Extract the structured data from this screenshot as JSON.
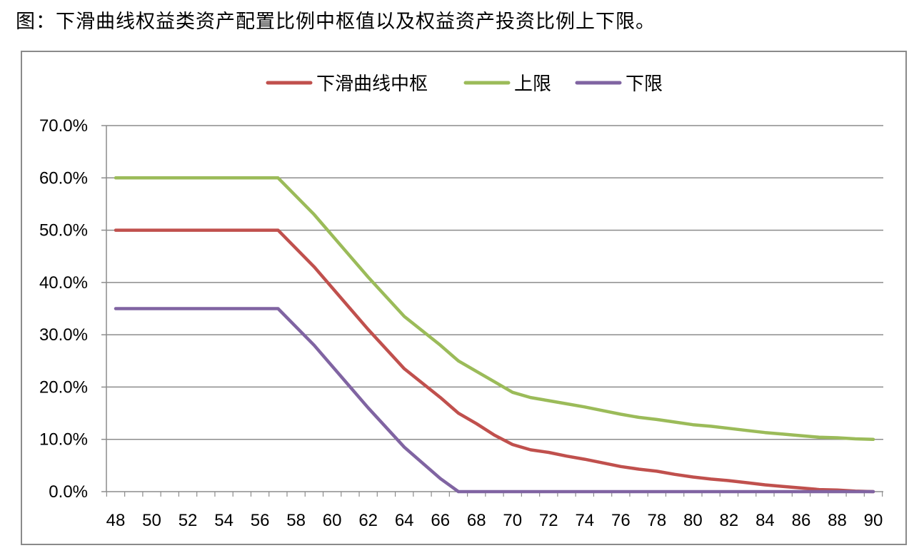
{
  "caption": "图：下滑曲线权益类资产配置比例中枢值以及权益资产投资比例上下限。",
  "chart_data": {
    "type": "line",
    "title": "",
    "xlabel": "",
    "ylabel": "",
    "ylim": [
      0,
      70
    ],
    "xlim": [
      48,
      90
    ],
    "y_ticks": [
      "0.0%",
      "10.0%",
      "20.0%",
      "30.0%",
      "40.0%",
      "50.0%",
      "60.0%",
      "70.0%"
    ],
    "x_ticks": [
      "48",
      "50",
      "52",
      "54",
      "56",
      "58",
      "60",
      "62",
      "64",
      "66",
      "68",
      "70",
      "72",
      "74",
      "76",
      "78",
      "80",
      "82",
      "84",
      "86",
      "88",
      "90"
    ],
    "grid": true,
    "legend_position": "top",
    "series": [
      {
        "name": "下滑曲线中枢",
        "color": "#c0504d",
        "x": [
          48,
          57,
          59,
          61,
          62,
          64,
          66,
          67,
          68,
          69,
          70,
          71,
          72,
          73,
          74,
          75,
          76,
          77,
          78,
          79,
          80,
          81,
          82,
          83,
          84,
          85,
          86,
          87,
          88,
          89,
          90
        ],
        "y": [
          50,
          50,
          43,
          35,
          31,
          23.5,
          18,
          15,
          13,
          10.8,
          9,
          8,
          7.5,
          6.8,
          6.2,
          5.5,
          4.8,
          4.3,
          3.9,
          3.3,
          2.8,
          2.4,
          2.1,
          1.7,
          1.3,
          1.0,
          0.7,
          0.4,
          0.3,
          0.1,
          0
        ]
      },
      {
        "name": "上限",
        "color": "#9bbb59",
        "x": [
          48,
          57,
          59,
          61,
          62,
          64,
          66,
          67,
          68,
          69,
          70,
          71,
          72,
          73,
          74,
          75,
          76,
          77,
          78,
          79,
          80,
          81,
          82,
          83,
          84,
          85,
          86,
          87,
          88,
          89,
          90
        ],
        "y": [
          60,
          60,
          53,
          45,
          41,
          33.5,
          28,
          25,
          23,
          21,
          19,
          18,
          17.4,
          16.8,
          16.2,
          15.5,
          14.8,
          14.2,
          13.8,
          13.3,
          12.8,
          12.5,
          12.1,
          11.7,
          11.3,
          11,
          10.7,
          10.4,
          10.3,
          10.1,
          10
        ]
      },
      {
        "name": "下限",
        "color": "#8064a2",
        "x": [
          48,
          57,
          59,
          61,
          62,
          64,
          66,
          67,
          68,
          70,
          72,
          74,
          76,
          78,
          80,
          82,
          84,
          86,
          88,
          90
        ],
        "y": [
          35,
          35,
          28,
          20,
          16,
          8.5,
          2.5,
          0,
          0,
          0,
          0,
          0,
          0,
          0,
          0,
          0,
          0,
          0,
          0,
          0
        ]
      }
    ]
  }
}
